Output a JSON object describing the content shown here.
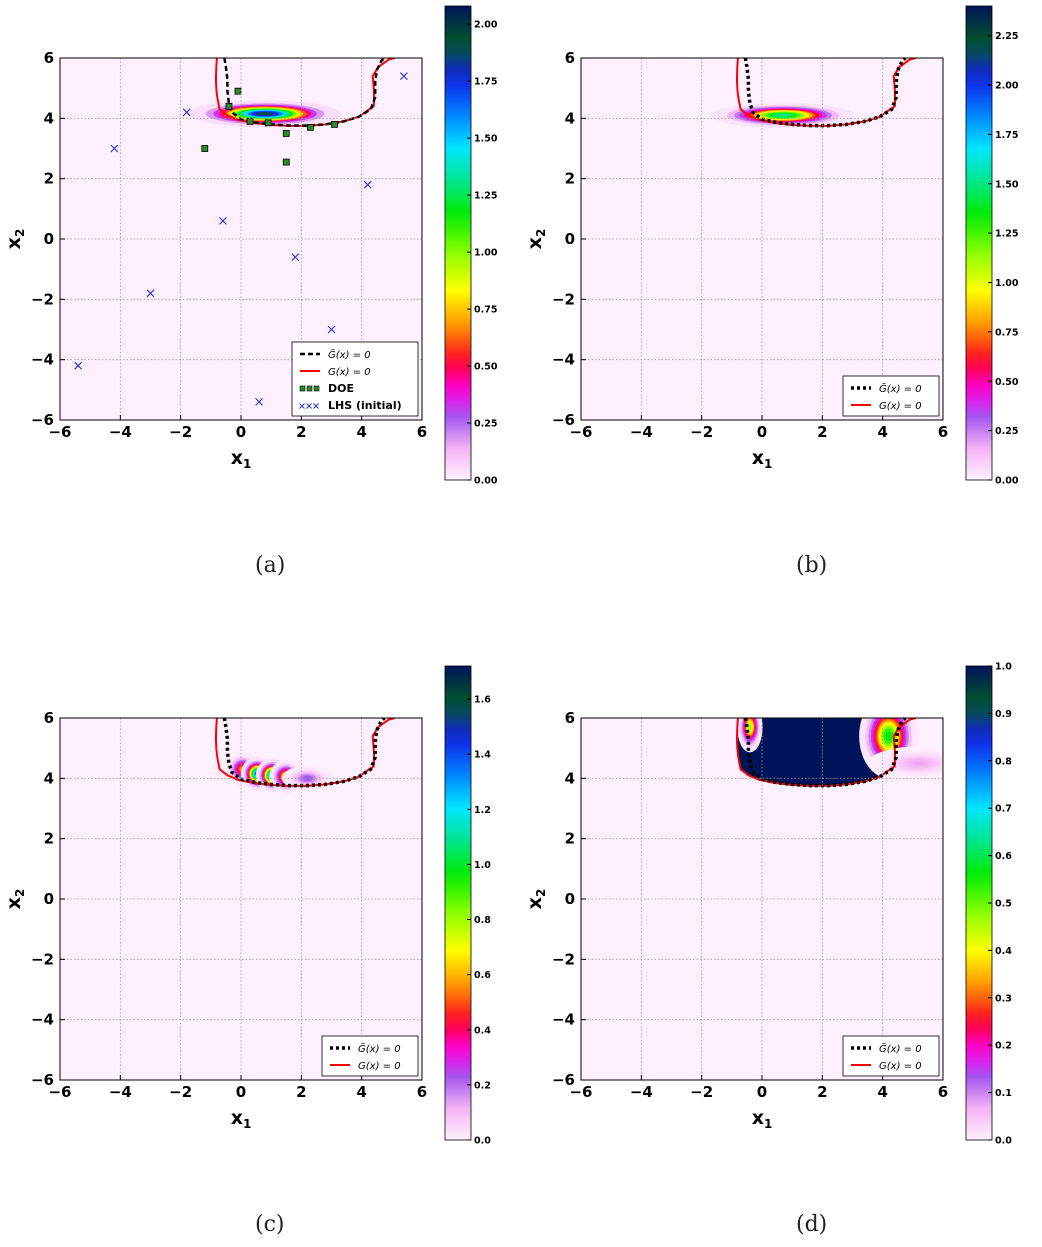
{
  "figure": {
    "captions": [
      "(a)",
      "(b)",
      "(c)",
      "(d)"
    ]
  },
  "chart_data": [
    {
      "type": "heatmap",
      "panel": "(a)",
      "xlabel": "x1",
      "ylabel": "x2",
      "xlim": [
        -6,
        6
      ],
      "ylim": [
        -6,
        6
      ],
      "xticks": [
        -6,
        -4,
        -2,
        0,
        2,
        4,
        6
      ],
      "yticks": [
        -6,
        -4,
        -2,
        0,
        2,
        4,
        6
      ],
      "grid": true,
      "colorbar": {
        "min": 0,
        "max": 2.08,
        "ticks": [
          "0.00",
          "0.25",
          "0.50",
          "0.75",
          "1.00",
          "1.25",
          "1.50",
          "1.75",
          "2.00"
        ],
        "tick_values": [
          0,
          0.25,
          0.5,
          0.75,
          1.0,
          1.25,
          1.5,
          1.75,
          2.0
        ]
      },
      "hotspots": [
        {
          "x": 0.8,
          "y": 4.15,
          "sx": 0.9,
          "sy": 0.16,
          "value": 2.0
        }
      ],
      "legend": {
        "position": "lower-right",
        "entries": [
          "G̃(x) = 0",
          "G(x) = 0",
          "DOE",
          "LHS (initial)"
        ]
      },
      "doe_points": [
        [
          -1.2,
          3.0
        ],
        [
          -0.1,
          4.9
        ],
        [
          -0.4,
          4.4
        ],
        [
          0.3,
          3.9
        ],
        [
          0.9,
          3.85
        ],
        [
          1.5,
          3.5
        ],
        [
          1.5,
          2.55
        ],
        [
          2.3,
          3.7
        ],
        [
          3.1,
          3.8
        ]
      ],
      "lhs_points": [
        [
          -5.4,
          -4.2
        ],
        [
          -4.2,
          3.0
        ],
        [
          -3.0,
          -1.8
        ],
        [
          -1.8,
          4.2
        ],
        [
          -0.6,
          0.6
        ],
        [
          0.6,
          -5.4
        ],
        [
          1.8,
          -0.6
        ],
        [
          3.0,
          -3.0
        ],
        [
          4.2,
          1.8
        ],
        [
          5.4,
          5.4
        ]
      ]
    },
    {
      "type": "heatmap",
      "panel": "(b)",
      "xlabel": "x1",
      "ylabel": "x2",
      "xlim": [
        -6,
        6
      ],
      "ylim": [
        -6,
        6
      ],
      "xticks": [
        -6,
        -4,
        -2,
        0,
        2,
        4,
        6
      ],
      "yticks": [
        -6,
        -4,
        -2,
        0,
        2,
        4,
        6
      ],
      "grid": true,
      "colorbar": {
        "min": 0,
        "max": 2.4,
        "ticks": [
          "0.00",
          "0.25",
          "0.50",
          "0.75",
          "1.00",
          "1.25",
          "1.50",
          "1.75",
          "2.00",
          "2.25"
        ],
        "tick_values": [
          0,
          0.25,
          0.5,
          0.75,
          1.0,
          1.25,
          1.5,
          1.75,
          2.0,
          2.25
        ]
      },
      "hotspots": [
        {
          "x": 0.7,
          "y": 4.1,
          "sx": 0.85,
          "sy": 0.15,
          "value": 1.6
        }
      ],
      "legend": {
        "position": "lower-right",
        "entries": [
          "G̃(x) = 0",
          "G(x) = 0"
        ]
      }
    },
    {
      "type": "heatmap",
      "panel": "(c)",
      "xlabel": "x1",
      "ylabel": "x2",
      "xlim": [
        -6,
        6
      ],
      "ylim": [
        -6,
        6
      ],
      "xticks": [
        -6,
        -4,
        -2,
        0,
        2,
        4,
        6
      ],
      "yticks": [
        -6,
        -4,
        -2,
        0,
        2,
        4,
        6
      ],
      "grid": true,
      "colorbar": {
        "min": 0,
        "max": 1.72,
        "ticks": [
          "0.0",
          "0.2",
          "0.4",
          "0.6",
          "0.8",
          "1.0",
          "1.2",
          "1.4",
          "1.6"
        ],
        "tick_values": [
          0,
          0.2,
          0.4,
          0.6,
          0.8,
          1.0,
          1.2,
          1.4,
          1.6
        ]
      },
      "hotspots": [
        {
          "x": 0.05,
          "y": 4.3,
          "sx": 0.2,
          "sy": 0.2,
          "value": 0.6
        },
        {
          "x": 0.55,
          "y": 4.15,
          "sx": 0.2,
          "sy": 0.2,
          "value": 1.5
        },
        {
          "x": 1.05,
          "y": 4.1,
          "sx": 0.2,
          "sy": 0.2,
          "value": 1.5
        },
        {
          "x": 1.5,
          "y": 4.05,
          "sx": 0.2,
          "sy": 0.2,
          "value": 0.8
        },
        {
          "x": 2.2,
          "y": 4.0,
          "sx": 0.3,
          "sy": 0.15,
          "value": 0.25
        }
      ],
      "legend": {
        "position": "lower-right",
        "entries": [
          "G̃(x) = 0",
          "G(x) = 0"
        ]
      }
    },
    {
      "type": "heatmap",
      "panel": "(d)",
      "xlabel": "x1",
      "ylabel": "x2",
      "xlim": [
        -6,
        6
      ],
      "ylim": [
        -6,
        6
      ],
      "xticks": [
        -6,
        -4,
        -2,
        0,
        2,
        4,
        6
      ],
      "yticks": [
        -6,
        -4,
        -2,
        0,
        2,
        4,
        6
      ],
      "grid": true,
      "colorbar": {
        "min": 0,
        "max": 1.0,
        "ticks": [
          "0.0",
          "0.1",
          "0.2",
          "0.3",
          "0.4",
          "0.5",
          "0.6",
          "0.7",
          "0.8",
          "0.9",
          "1.0"
        ],
        "tick_values": [
          0,
          0.1,
          0.2,
          0.3,
          0.4,
          0.5,
          0.6,
          0.7,
          0.8,
          0.9,
          1.0
        ]
      },
      "fill_region": {
        "value": 1.0,
        "note_region": "inside failure boundary above curve"
      },
      "hotspots": [
        {
          "x": 4.2,
          "y": 5.4,
          "sx": 0.35,
          "sy": 0.5,
          "value": 0.6
        },
        {
          "x": -0.4,
          "y": 5.7,
          "sx": 0.15,
          "sy": 0.3,
          "value": 0.5
        },
        {
          "x": 5.2,
          "y": 4.5,
          "sx": 0.6,
          "sy": 0.2,
          "value": 0.08
        }
      ],
      "legend": {
        "position": "lower-right",
        "entries": [
          "G̃(x) = 0",
          "G(x) = 0"
        ]
      }
    }
  ]
}
